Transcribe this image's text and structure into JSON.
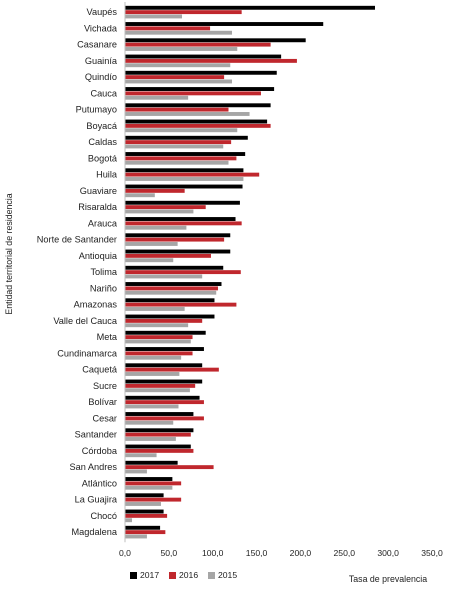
{
  "chart_data": {
    "type": "bar",
    "orientation": "horizontal",
    "xlabel": "Tasa de prevalencia",
    "ylabel": "Entidad territorial de residencia",
    "xlim": [
      0,
      350
    ],
    "xticks": [
      "0,0",
      "50,0",
      "100,0",
      "150,0",
      "200,0",
      "250,0",
      "300,0",
      "350,0"
    ],
    "grid": false,
    "legend_position": "bottom-left",
    "categories": [
      "Vaupés",
      "Vichada",
      "Casanare",
      "Guainía",
      "Quindío",
      "Cauca",
      "Putumayo",
      "Boyacá",
      "Caldas",
      "Bogotá",
      "Huila",
      "Guaviare",
      "Risaralda",
      "Arauca",
      "Norte de Santander",
      "Antioquia",
      "Tolima",
      "Nariño",
      "Amazonas",
      "Valle del Cauca",
      "Meta",
      "Cundinamarca",
      "Caquetá",
      "Sucre",
      "Bolívar",
      "Cesar",
      "Santander",
      "Córdoba",
      "San Andres",
      "Atlántico",
      "La Guajira",
      "Chocó",
      "Magdalena"
    ],
    "series": [
      {
        "name": "2017",
        "color": "#000000",
        "values": [
          285,
          226,
          206,
          178,
          173,
          170,
          166,
          162,
          140,
          137,
          135,
          134,
          131,
          126,
          120,
          120,
          112,
          110,
          102,
          102,
          92,
          90,
          88,
          88,
          85,
          78,
          78,
          75,
          60,
          54,
          44,
          44,
          40
        ]
      },
      {
        "name": "2016",
        "color": "#c0272d",
        "values": [
          133,
          97,
          166,
          196,
          113,
          155,
          118,
          166,
          121,
          127,
          153,
          68,
          92,
          133,
          113,
          98,
          132,
          106,
          127,
          88,
          77,
          77,
          107,
          80,
          90,
          90,
          75,
          78,
          101,
          64,
          64,
          48,
          46
        ]
      },
      {
        "name": "2015",
        "color": "#a6a6a6",
        "values": [
          65,
          122,
          128,
          120,
          122,
          72,
          142,
          128,
          112,
          118,
          135,
          34,
          78,
          70,
          60,
          55,
          88,
          104,
          68,
          72,
          75,
          64,
          62,
          74,
          61,
          55,
          58,
          36,
          25,
          54,
          41,
          8,
          25
        ]
      }
    ]
  }
}
